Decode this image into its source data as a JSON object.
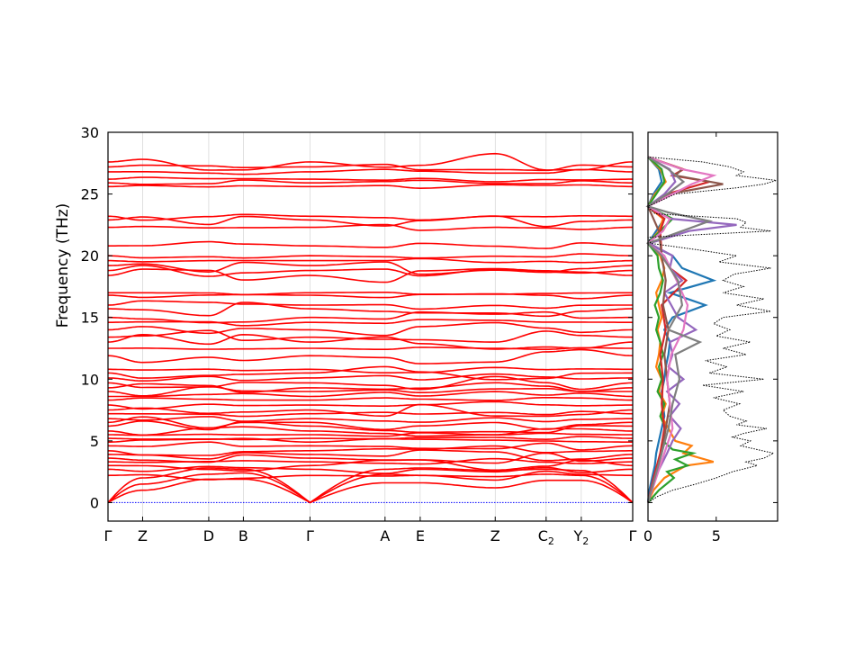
{
  "chart_data": [
    {
      "type": "line",
      "subtype": "phonon-band-structure",
      "ylabel": "Frequency (THz)",
      "ylim": [
        -1.5,
        30
      ],
      "yticks": [
        0,
        5,
        10,
        15,
        20,
        25,
        30
      ],
      "high_symmetry_points": [
        {
          "label": "Γ",
          "sub": "",
          "k": 0.0
        },
        {
          "label": "Z",
          "sub": "",
          "k": 0.066
        },
        {
          "label": "D",
          "sub": "",
          "k": 0.192
        },
        {
          "label": "B",
          "sub": "",
          "k": 0.258
        },
        {
          "label": "Γ",
          "sub": "",
          "k": 0.385
        },
        {
          "label": "A",
          "sub": "",
          "k": 0.528
        },
        {
          "label": "E",
          "sub": "",
          "k": 0.595
        },
        {
          "label": "Z",
          "sub": "",
          "k": 0.738
        },
        {
          "label": "C",
          "sub": "2",
          "k": 0.835
        },
        {
          "label": "Y",
          "sub": "2",
          "k": 0.902
        },
        {
          "label": "Γ",
          "sub": "",
          "k": 1.0
        }
      ],
      "line_color": "#ff0000",
      "zero_line_color": "#0000ff",
      "acoustic_branches": [
        {
          "name": "acoustic-1",
          "k": [
            0,
            0.066,
            0.192,
            0.258,
            0.385,
            0.528,
            0.595,
            0.738,
            0.835,
            0.902,
            1.0
          ],
          "freq": [
            0,
            1.0,
            1.9,
            1.9,
            0,
            1.6,
            1.6,
            1.2,
            1.8,
            1.8,
            0
          ]
        },
        {
          "name": "acoustic-2",
          "k": [
            0,
            0.066,
            0.192,
            0.258,
            0.385,
            0.528,
            0.595,
            0.738,
            0.835,
            0.902,
            1.0
          ],
          "freq": [
            0,
            1.5,
            2.3,
            2.4,
            0,
            2.3,
            2.2,
            2.1,
            2.3,
            2.2,
            0
          ]
        },
        {
          "name": "acoustic-3",
          "k": [
            0,
            0.066,
            0.192,
            0.258,
            0.385,
            0.528,
            0.595,
            0.738,
            0.835,
            0.902,
            1.0
          ],
          "freq": [
            0,
            2.0,
            2.8,
            2.7,
            0,
            2.7,
            2.8,
            2.6,
            2.7,
            2.6,
            0
          ]
        }
      ],
      "optical_branches_gamma": [
        2.2,
        2.7,
        3.0,
        3.3,
        3.6,
        3.9,
        4.2,
        4.6,
        4.9,
        5.2,
        5.5,
        5.8,
        6.2,
        6.5,
        6.8,
        7.2,
        7.5,
        7.9,
        8.3,
        8.6,
        9.0,
        9.3,
        9.7,
        10.1,
        10.5,
        10.8,
        11.9,
        12.5,
        13.0,
        13.4,
        14.0,
        14.6,
        15.0,
        15.7,
        16.0,
        16.8,
        17.0,
        18.4,
        18.8,
        19.2,
        19.6,
        20.0,
        20.8,
        22.3,
        22.9,
        23.2,
        25.6,
        25.9,
        26.2,
        26.8,
        27.2,
        27.6
      ]
    },
    {
      "type": "line",
      "subtype": "phonon-dos",
      "xlim": [
        0,
        9.5
      ],
      "xticks": [
        0,
        5
      ],
      "ylim": [
        -1.5,
        30
      ],
      "total_dos": {
        "color": "#000000",
        "style": "dotted",
        "freq": [
          0,
          0.5,
          1.0,
          1.5,
          2.0,
          2.5,
          3.0,
          3.3,
          3.6,
          4.0,
          4.3,
          4.6,
          5.0,
          5.3,
          5.6,
          6.0,
          6.3,
          6.6,
          7.0,
          7.5,
          8.0,
          8.5,
          9.0,
          9.5,
          10.0,
          10.5,
          11.0,
          11.5,
          12.0,
          12.5,
          13.0,
          13.5,
          14.0,
          14.5,
          15.0,
          15.5,
          16.0,
          16.5,
          17.0,
          17.5,
          18.0,
          18.5,
          19.0,
          19.5,
          20.0,
          20.5,
          21.0,
          21.5,
          22.0,
          22.3,
          22.7,
          23.0,
          23.4,
          24.0,
          25.0,
          25.5,
          25.8,
          26.1,
          26.5,
          26.8,
          27.2,
          27.6,
          28.0
        ],
        "dos": [
          0,
          0.7,
          1.8,
          3.5,
          5.0,
          6.2,
          8.0,
          7.2,
          8.5,
          9.2,
          8.0,
          6.8,
          7.5,
          6.2,
          7.0,
          8.7,
          6.5,
          7.2,
          6.0,
          5.5,
          6.7,
          4.8,
          7.0,
          4.0,
          8.5,
          4.5,
          5.8,
          4.2,
          7.2,
          5.5,
          7.5,
          5.0,
          6.0,
          4.8,
          5.5,
          9.0,
          6.5,
          8.5,
          5.5,
          7.0,
          5.5,
          6.3,
          9.0,
          5.2,
          6.5,
          3.5,
          0.2,
          0,
          9.0,
          6.8,
          7.2,
          6.5,
          0.5,
          0,
          2.0,
          6.5,
          8.5,
          9.4,
          6.5,
          7.0,
          6.0,
          4.0,
          0
        ]
      },
      "partial_dos": [
        {
          "color": "#1f77b4",
          "freq": [
            0,
            1,
            2,
            3,
            4,
            5,
            6,
            7,
            8,
            9,
            10,
            11,
            12,
            13,
            14,
            15,
            16,
            17,
            18,
            19,
            20,
            21,
            22,
            23,
            24,
            25,
            26,
            27,
            28
          ],
          "dos": [
            0,
            0.1,
            0.3,
            0.5,
            0.6,
            0.8,
            1.0,
            1.2,
            1.1,
            1.0,
            1.2,
            1.3,
            1.5,
            1.6,
            1.2,
            1.8,
            4.2,
            1.6,
            4.8,
            2.5,
            1.8,
            0,
            0.6,
            1.2,
            0,
            0.4,
            1.0,
            0.8,
            0
          ]
        },
        {
          "color": "#ff7f0e",
          "freq": [
            0,
            1,
            2,
            3,
            3.3,
            4,
            4.6,
            5,
            6,
            7,
            8,
            9,
            10,
            11,
            12,
            13,
            14,
            15,
            16,
            17,
            18,
            19,
            20,
            21,
            22,
            23,
            24,
            25,
            26,
            27,
            28
          ],
          "dos": [
            0,
            0.4,
            1.2,
            2.8,
            4.8,
            2.6,
            3.2,
            2.0,
            1.5,
            1.0,
            1.3,
            0.8,
            1.0,
            0.6,
            0.8,
            0.9,
            0.7,
            1.0,
            0.8,
            0.6,
            1.0,
            1.2,
            0.9,
            0,
            0.8,
            1.1,
            0,
            0.5,
            1.3,
            0.9,
            0
          ]
        },
        {
          "color": "#2ca02c",
          "freq": [
            0,
            1,
            2,
            2.5,
            3,
            3.5,
            4,
            4.3,
            5,
            6,
            7,
            8,
            9,
            10,
            11,
            12,
            13,
            14,
            15,
            16,
            17,
            18,
            19,
            20,
            21,
            22,
            23,
            24,
            25,
            26,
            27,
            28
          ],
          "dos": [
            0,
            0.8,
            1.9,
            1.4,
            2.9,
            2.0,
            3.3,
            1.8,
            1.1,
            1.3,
            0.9,
            1.2,
            0.7,
            1.0,
            0.8,
            1.1,
            0.9,
            0.6,
            0.8,
            0.5,
            0.9,
            1.1,
            0.8,
            0.7,
            0,
            0.9,
            1.8,
            0,
            0.6,
            1.2,
            1.0,
            0
          ]
        },
        {
          "color": "#d62728",
          "freq": [
            0,
            2,
            4,
            6,
            8,
            10,
            12,
            14,
            16,
            18,
            19,
            20,
            22,
            23,
            24,
            25,
            26,
            26.5,
            27,
            28
          ],
          "dos": [
            0,
            0.4,
            0.9,
            1.2,
            1.0,
            1.1,
            0.9,
            1.3,
            1.0,
            2.8,
            1.6,
            1.0,
            0.9,
            1.2,
            0,
            1.4,
            4.5,
            1.8,
            2.6,
            0
          ]
        },
        {
          "color": "#9467bd",
          "freq": [
            0,
            2,
            4,
            5,
            6,
            7,
            8,
            9,
            10,
            11,
            12,
            13,
            14,
            15,
            16,
            17,
            18,
            19,
            20,
            21,
            22,
            22.5,
            23,
            24,
            25,
            26,
            27,
            28
          ],
          "dos": [
            0,
            0.5,
            1.4,
            1.8,
            2.4,
            1.6,
            2.3,
            1.4,
            2.6,
            1.5,
            1.8,
            1.6,
            3.5,
            2.2,
            1.7,
            1.2,
            2.5,
            1.6,
            1.8,
            0.1,
            3.0,
            6.5,
            1.6,
            0,
            1.2,
            2.0,
            1.6,
            0
          ]
        },
        {
          "color": "#8c564b",
          "freq": [
            0,
            2,
            4,
            6,
            8,
            10,
            12,
            14,
            16,
            18,
            20,
            22,
            24,
            25,
            25.8,
            26.5,
            27,
            28
          ],
          "dos": [
            0,
            0.5,
            1.0,
            1.3,
            1.6,
            1.4,
            1.2,
            1.5,
            1.1,
            1.3,
            1.0,
            0.8,
            0,
            1.5,
            5.5,
            2.0,
            2.5,
            0
          ]
        },
        {
          "color": "#e377c2",
          "freq": [
            0,
            2,
            4,
            6,
            8,
            10,
            12,
            14,
            16,
            18,
            20,
            21,
            22,
            23,
            24,
            25,
            25.8,
            26.5,
            27,
            28
          ],
          "dos": [
            0,
            0.6,
            1.2,
            1.8,
            1.6,
            1.4,
            1.7,
            2.6,
            2.9,
            2.1,
            1.2,
            0,
            1.1,
            1.6,
            0,
            1.8,
            3.2,
            4.8,
            2.5,
            0
          ]
        },
        {
          "color": "#7f7f7f",
          "freq": [
            0,
            2,
            4,
            6,
            8,
            10,
            12,
            13,
            14,
            16,
            18,
            20,
            21,
            22,
            22.8,
            23.5,
            24,
            25,
            26,
            27,
            28
          ],
          "dos": [
            0,
            0.5,
            1.0,
            1.5,
            1.8,
            2.3,
            2.0,
            3.8,
            1.5,
            2.5,
            2.2,
            1.0,
            0,
            2.5,
            4.5,
            1.5,
            0,
            1.4,
            2.6,
            1.5,
            0
          ]
        }
      ]
    }
  ]
}
